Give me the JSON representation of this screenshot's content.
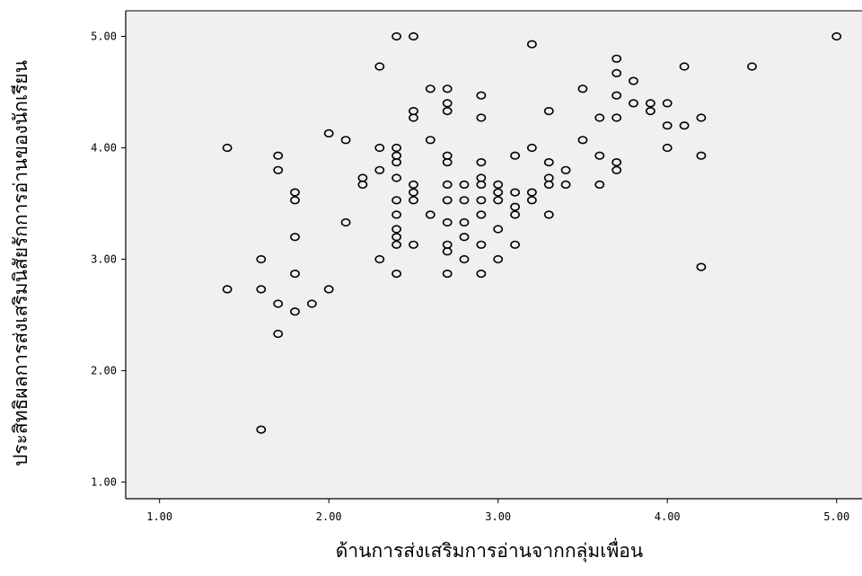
{
  "chart_data": {
    "type": "scatter",
    "xlabel": "ด้านการส่งเสริมการอ่านจากกลุ่มเพื่อน",
    "ylabel": "ประสิทธิผลการส่งเสริมนิสัยรักการอ่านของนักเรียน",
    "xlim": [
      0.8,
      5.15
    ],
    "ylim": [
      0.85,
      5.23
    ],
    "xticks": [
      "1.00",
      "2.00",
      "3.00",
      "4.00",
      "5.00"
    ],
    "yticks": [
      "1.00",
      "2.00",
      "3.00",
      "4.00",
      "5.00"
    ],
    "grid": false,
    "background": "#f0f0f0",
    "marker_color": "#000000",
    "points": [
      [
        1.4,
        4.0
      ],
      [
        1.4,
        2.73
      ],
      [
        1.6,
        3.0
      ],
      [
        1.6,
        2.73
      ],
      [
        1.6,
        1.47
      ],
      [
        1.7,
        3.93
      ],
      [
        1.7,
        3.8
      ],
      [
        1.7,
        2.6
      ],
      [
        1.7,
        2.33
      ],
      [
        1.8,
        3.6
      ],
      [
        1.8,
        3.53
      ],
      [
        1.8,
        3.2
      ],
      [
        1.8,
        2.87
      ],
      [
        1.8,
        2.53
      ],
      [
        1.9,
        2.6
      ],
      [
        2.0,
        4.13
      ],
      [
        2.0,
        2.73
      ],
      [
        2.1,
        4.07
      ],
      [
        2.1,
        3.33
      ],
      [
        2.2,
        3.73
      ],
      [
        2.2,
        3.67
      ],
      [
        2.3,
        4.73
      ],
      [
        2.3,
        4.0
      ],
      [
        2.3,
        3.8
      ],
      [
        2.3,
        3.0
      ],
      [
        2.4,
        5.0
      ],
      [
        2.4,
        4.0
      ],
      [
        2.4,
        3.93
      ],
      [
        2.4,
        3.87
      ],
      [
        2.4,
        3.73
      ],
      [
        2.4,
        3.53
      ],
      [
        2.4,
        3.4
      ],
      [
        2.4,
        3.27
      ],
      [
        2.4,
        3.2
      ],
      [
        2.4,
        3.13
      ],
      [
        2.4,
        2.87
      ],
      [
        2.5,
        5.0
      ],
      [
        2.5,
        4.33
      ],
      [
        2.5,
        4.27
      ],
      [
        2.5,
        3.67
      ],
      [
        2.5,
        3.6
      ],
      [
        2.5,
        3.53
      ],
      [
        2.5,
        3.13
      ],
      [
        2.6,
        4.53
      ],
      [
        2.6,
        4.07
      ],
      [
        2.6,
        3.4
      ],
      [
        2.7,
        4.53
      ],
      [
        2.7,
        4.4
      ],
      [
        2.7,
        4.33
      ],
      [
        2.7,
        3.93
      ],
      [
        2.7,
        3.87
      ],
      [
        2.7,
        3.67
      ],
      [
        2.7,
        3.53
      ],
      [
        2.7,
        3.33
      ],
      [
        2.7,
        3.13
      ],
      [
        2.7,
        3.07
      ],
      [
        2.7,
        2.87
      ],
      [
        2.8,
        3.67
      ],
      [
        2.8,
        3.53
      ],
      [
        2.8,
        3.33
      ],
      [
        2.8,
        3.2
      ],
      [
        2.8,
        3.0
      ],
      [
        2.9,
        4.47
      ],
      [
        2.9,
        4.27
      ],
      [
        2.9,
        3.87
      ],
      [
        2.9,
        3.73
      ],
      [
        2.9,
        3.67
      ],
      [
        2.9,
        3.53
      ],
      [
        2.9,
        3.4
      ],
      [
        2.9,
        3.13
      ],
      [
        2.9,
        2.87
      ],
      [
        3.0,
        3.67
      ],
      [
        3.0,
        3.6
      ],
      [
        3.0,
        3.53
      ],
      [
        3.0,
        3.27
      ],
      [
        3.0,
        3.0
      ],
      [
        3.1,
        3.93
      ],
      [
        3.1,
        3.6
      ],
      [
        3.1,
        3.47
      ],
      [
        3.1,
        3.4
      ],
      [
        3.1,
        3.13
      ],
      [
        3.2,
        4.93
      ],
      [
        3.2,
        4.0
      ],
      [
        3.2,
        3.6
      ],
      [
        3.2,
        3.53
      ],
      [
        3.3,
        4.33
      ],
      [
        3.3,
        3.87
      ],
      [
        3.3,
        3.73
      ],
      [
        3.3,
        3.67
      ],
      [
        3.3,
        3.4
      ],
      [
        3.4,
        3.8
      ],
      [
        3.4,
        3.67
      ],
      [
        3.5,
        4.53
      ],
      [
        3.5,
        4.07
      ],
      [
        3.6,
        4.27
      ],
      [
        3.6,
        3.93
      ],
      [
        3.6,
        3.67
      ],
      [
        3.7,
        4.8
      ],
      [
        3.7,
        4.67
      ],
      [
        3.7,
        4.47
      ],
      [
        3.7,
        4.27
      ],
      [
        3.7,
        3.87
      ],
      [
        3.7,
        3.8
      ],
      [
        3.8,
        4.6
      ],
      [
        3.8,
        4.4
      ],
      [
        3.9,
        4.4
      ],
      [
        3.9,
        4.33
      ],
      [
        4.0,
        4.4
      ],
      [
        4.0,
        4.2
      ],
      [
        4.0,
        4.0
      ],
      [
        4.1,
        4.73
      ],
      [
        4.1,
        4.2
      ],
      [
        4.2,
        4.27
      ],
      [
        4.2,
        3.93
      ],
      [
        4.2,
        2.93
      ],
      [
        4.5,
        4.73
      ],
      [
        5.0,
        5.0
      ]
    ]
  }
}
